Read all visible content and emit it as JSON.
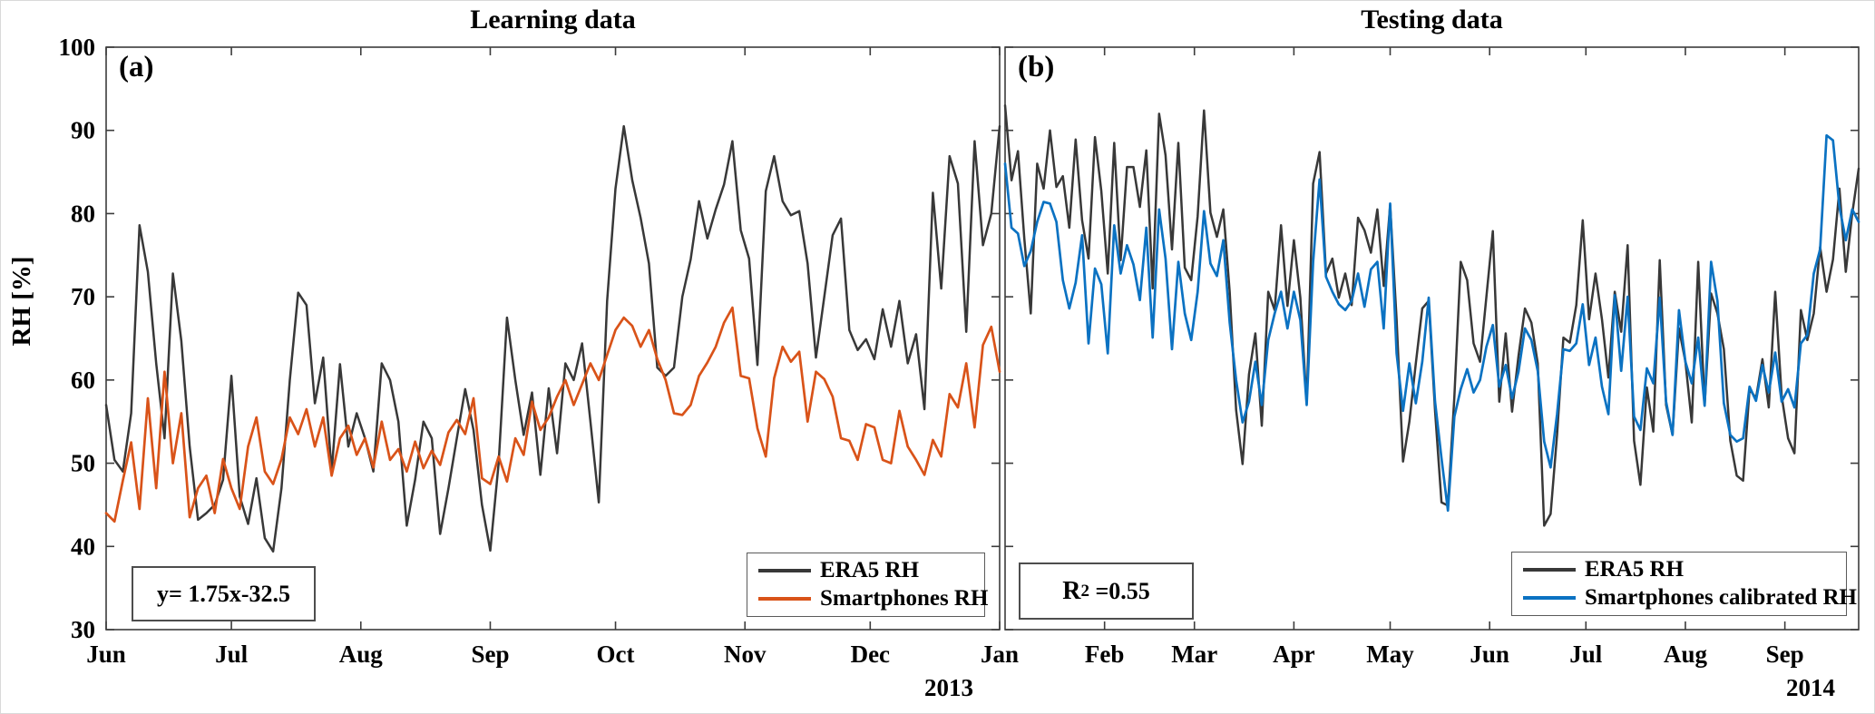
{
  "figure": {
    "ylabel": "RH [%]",
    "background": "#ffffff",
    "axis_color": "#3c3c3c",
    "colors": {
      "era5": "#383838",
      "smartphones": "#d95319",
      "smartphones_calibrated": "#0b72c2"
    }
  },
  "chart_data": [
    {
      "type": "line",
      "title": "Learning data",
      "panel_label": "(a)",
      "annotation": "y= 1.75x-32.5",
      "year_label": "2013",
      "ylabel": "RH [%]",
      "ylim": [
        30,
        100
      ],
      "yticks": [
        30,
        40,
        50,
        60,
        70,
        80,
        90,
        100
      ],
      "grid": false,
      "legend_position": "lower right",
      "x_domain": [
        0,
        214
      ],
      "x_unit": "days from 2013-06-01 (values sampled every 2 days)",
      "x_ticks": {
        "labels": [
          "Jun",
          "Jul",
          "Aug",
          "Sep",
          "Oct",
          "Nov",
          "Dec",
          "Jan"
        ],
        "days": [
          0,
          30,
          61,
          92,
          122,
          153,
          183,
          214
        ]
      },
      "series": [
        {
          "name": "ERA5 RH",
          "color": "#383838",
          "width": 2.5,
          "values": [
            57,
            50.4,
            49,
            56,
            78.6,
            73,
            62,
            53,
            72.8,
            64.7,
            52,
            43.2,
            44,
            45,
            48,
            60.5,
            46,
            42.7,
            48.2,
            41,
            39.4,
            47,
            60,
            70.5,
            69,
            57.2,
            62.7,
            49,
            61.9,
            52,
            56,
            53,
            49,
            62,
            60,
            55,
            42.5,
            48,
            55,
            53,
            41.5,
            47,
            53,
            58.9,
            54,
            45,
            39.5,
            50,
            67.5,
            60,
            53.4,
            58.5,
            48.6,
            59,
            51.2,
            62,
            60,
            64.4,
            55,
            45.3,
            69.5,
            83,
            90.5,
            84,
            79.5,
            74,
            61.5,
            60.5,
            61.5,
            70,
            74.5,
            81.5,
            77,
            80.5,
            83.5,
            88.7,
            78,
            74.6,
            61.8,
            82.7,
            86.9,
            81.5,
            79.8,
            80.3,
            74,
            62.7,
            70,
            77.4,
            79.4,
            66,
            63.6,
            64.9,
            62.5,
            68.5,
            64,
            69.5,
            62,
            65.5,
            56.5,
            82.5,
            71,
            86.9,
            83.6,
            65.8,
            88.7,
            76.2,
            80,
            90.5
          ]
        },
        {
          "name": "Smartphones RH",
          "color": "#d95319",
          "width": 2.7,
          "values": [
            44,
            43,
            47.9,
            52.5,
            44.5,
            57.8,
            47,
            61,
            50,
            56,
            43.5,
            47,
            48.5,
            44,
            50.5,
            47,
            44.5,
            52,
            55.5,
            49,
            47.5,
            50.5,
            55.5,
            53.5,
            56.5,
            52,
            55.5,
            48.5,
            53,
            54.5,
            51,
            53,
            49.5,
            55,
            50.4,
            51.7,
            49,
            52.6,
            49.4,
            51.5,
            49.8,
            53.7,
            55.2,
            53.5,
            57.8,
            48.2,
            47.5,
            50.8,
            47.8,
            53,
            51,
            57.4,
            54,
            55.5,
            58,
            60,
            57,
            59.5,
            62,
            60,
            63,
            66,
            67.5,
            66.5,
            64,
            66,
            62.5,
            60,
            56,
            55.8,
            57,
            60.5,
            62.1,
            64,
            66.9,
            68.7,
            60.5,
            60.2,
            54.2,
            50.8,
            60.2,
            64,
            62.2,
            63.4,
            55,
            61,
            60.1,
            58,
            53,
            52.7,
            50.4,
            54.7,
            54.3,
            50.4,
            50,
            56.3,
            52,
            50.4,
            48.6,
            52.8,
            50.8,
            58.3,
            56.7,
            62,
            54.3,
            64.2,
            66.4,
            61
          ]
        }
      ]
    },
    {
      "type": "line",
      "title": "Testing data",
      "panel_label": "(b)",
      "annotation": "R2 =0.55",
      "annotation_parts": {
        "base": "R",
        "sup": "2",
        "rest": " =0.55"
      },
      "year_label": "2014",
      "ylabel": "RH [%]",
      "ylim": [
        30,
        100
      ],
      "yticks": [
        30,
        40,
        50,
        60,
        70,
        80,
        90,
        100
      ],
      "grid": false,
      "legend_position": "lower right",
      "x_domain": [
        0,
        266
      ],
      "x_unit": "days from 2014-01-01 (values sampled every 2 days)",
      "x_ticks": {
        "labels": [
          "Feb",
          "Mar",
          "Apr",
          "May",
          "Jun",
          "Jul",
          "Aug",
          "Sep"
        ],
        "days": [
          31,
          59,
          90,
          120,
          151,
          181,
          212,
          243
        ]
      },
      "series": [
        {
          "name": "ERA5 RH",
          "color": "#383838",
          "width": 2.5,
          "values": [
            93,
            84,
            87.5,
            77,
            68,
            86,
            83,
            90,
            83.2,
            84.5,
            78.3,
            88.9,
            79.2,
            74.6,
            89.2,
            82.7,
            72.8,
            88.5,
            74.4,
            85.6,
            85.6,
            80.8,
            87.6,
            71,
            92,
            87,
            75.7,
            88.5,
            73.5,
            72,
            79.7,
            92.4,
            80.1,
            77.2,
            80.5,
            70.6,
            56.4,
            49.9,
            60.7,
            65.6,
            54.5,
            70.6,
            68.4,
            78.6,
            68.9,
            76.8,
            69.9,
            57.2,
            83.6,
            87.4,
            72.8,
            74.6,
            69.9,
            72.8,
            69,
            79.5,
            78,
            75.3,
            80.5,
            71.3,
            81,
            67.3,
            50.2,
            55,
            62,
            68.6,
            69.5,
            56.3,
            45.3,
            44.9,
            58,
            74.2,
            72,
            64.4,
            62.2,
            70,
            77.9,
            57.4,
            65.6,
            56.2,
            62.9,
            68.6,
            66.9,
            62,
            42.5,
            43.9,
            53.4,
            65.1,
            64.5,
            69,
            79.2,
            67.3,
            72.8,
            67.3,
            60.3,
            70.6,
            65.8,
            76.2,
            52.7,
            47.4,
            59.1,
            53.8,
            74.4,
            57,
            53.4,
            66.2,
            62.2,
            54.9,
            74.2,
            57,
            70.4,
            68,
            63.7,
            52.7,
            48.5,
            47.9,
            58.9,
            57.8,
            62.5,
            56.7,
            70.6,
            58.1,
            53,
            51.2,
            68.4,
            64.8,
            68,
            76,
            70.6,
            74.5,
            83,
            73,
            80,
            85.4
          ]
        },
        {
          "name": "Smartphones calibrated RH",
          "color": "#0b72c2",
          "width": 2.7,
          "values": [
            86,
            78.3,
            77.6,
            73.7,
            75.5,
            79,
            81.4,
            81.2,
            79,
            72,
            68.6,
            71.7,
            77.4,
            64.4,
            73.4,
            71.5,
            63.2,
            78.6,
            72.8,
            76.2,
            73.9,
            69.6,
            78.3,
            65.1,
            80.5,
            74.6,
            63.7,
            74.2,
            68,
            64.8,
            70.6,
            80.3,
            74,
            72.5,
            76.8,
            66.9,
            60,
            54.9,
            57.4,
            62.2,
            57,
            64.8,
            68,
            70.6,
            66.2,
            70.6,
            67.2,
            57,
            74.2,
            84.1,
            72.4,
            70.6,
            69.1,
            68.4,
            69.5,
            72.8,
            68.8,
            73.3,
            74.2,
            66.2,
            81.2,
            63.2,
            56.3,
            62,
            57.2,
            62.2,
            69.9,
            57.4,
            50.6,
            44.3,
            55.6,
            58.9,
            61.3,
            58.5,
            60,
            64,
            66.6,
            59.2,
            61.8,
            57.8,
            61,
            66.2,
            64.8,
            61.1,
            52.6,
            49.5,
            55.9,
            63.7,
            63.5,
            64.4,
            69.1,
            61.8,
            65.1,
            59.2,
            55.9,
            70.2,
            61.1,
            70,
            55.6,
            54,
            61.4,
            59.6,
            69.9,
            57.4,
            53.4,
            68.4,
            62.2,
            59.6,
            65.1,
            56.9,
            74.2,
            69.5,
            57.2,
            53.4,
            52.6,
            53,
            59.2,
            57.5,
            61.8,
            58.5,
            63.3,
            57.4,
            58.9,
            56.7,
            64.4,
            65.4,
            72.8,
            75.7,
            89.4,
            88.8,
            80.8,
            76.8,
            80.5,
            79
          ]
        }
      ]
    }
  ]
}
